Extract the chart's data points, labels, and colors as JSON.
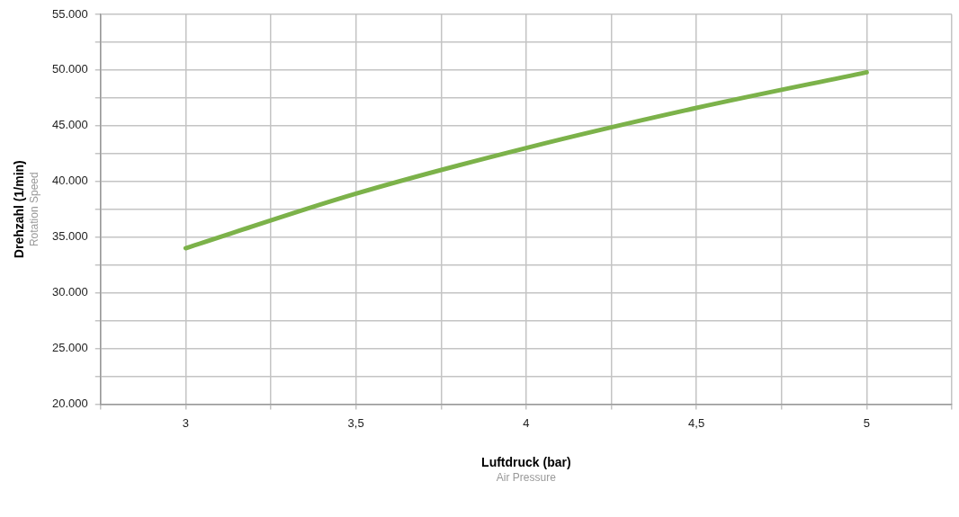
{
  "chart_data": {
    "type": "line",
    "xlabel": "Luftdruck (bar)",
    "ylabel": "Drehzahl (1/min)",
    "annotations": [
      "Air Pressure",
      "Rotation Speed"
    ],
    "x": [
      3,
      3.5,
      4,
      4.5,
      5
    ],
    "series": [
      {
        "color": "#7cb24a",
        "values": [
          34000,
          38900,
          43000,
          46600,
          49800
        ]
      }
    ],
    "xlim": [
      2.75,
      5.25
    ],
    "xticks": [
      {
        "value": 2.75,
        "label": null
      },
      {
        "value": 3,
        "label": "3"
      },
      {
        "value": 3.25,
        "label": null
      },
      {
        "value": 3.5,
        "label": "3,5"
      },
      {
        "value": 3.75,
        "label": null
      },
      {
        "value": 4,
        "label": "4"
      },
      {
        "value": 4.25,
        "label": null
      },
      {
        "value": 4.5,
        "label": "4,5"
      },
      {
        "value": 4.75,
        "label": null
      },
      {
        "value": 5,
        "label": "5"
      },
      {
        "value": 5.25,
        "label": null
      }
    ],
    "ylim": [
      20000,
      55000
    ],
    "yticks": [
      {
        "value": 20000,
        "label": "20.000"
      },
      {
        "value": 22500,
        "label": null
      },
      {
        "value": 25000,
        "label": "25.000"
      },
      {
        "value": 27500,
        "label": null
      },
      {
        "value": 30000,
        "label": "30.000"
      },
      {
        "value": 32500,
        "label": null
      },
      {
        "value": 35000,
        "label": "35.000"
      },
      {
        "value": 37500,
        "label": null
      },
      {
        "value": 40000,
        "label": "40.000"
      },
      {
        "value": 42500,
        "label": null
      },
      {
        "value": 45000,
        "label": "45.000"
      },
      {
        "value": 47500,
        "label": null
      },
      {
        "value": 50000,
        "label": "50.000"
      },
      {
        "value": 52500,
        "label": null
      },
      {
        "value": 55000,
        "label": "55.000"
      }
    ],
    "grid": true,
    "legend": false,
    "marker": "none",
    "line_style": "solid"
  }
}
